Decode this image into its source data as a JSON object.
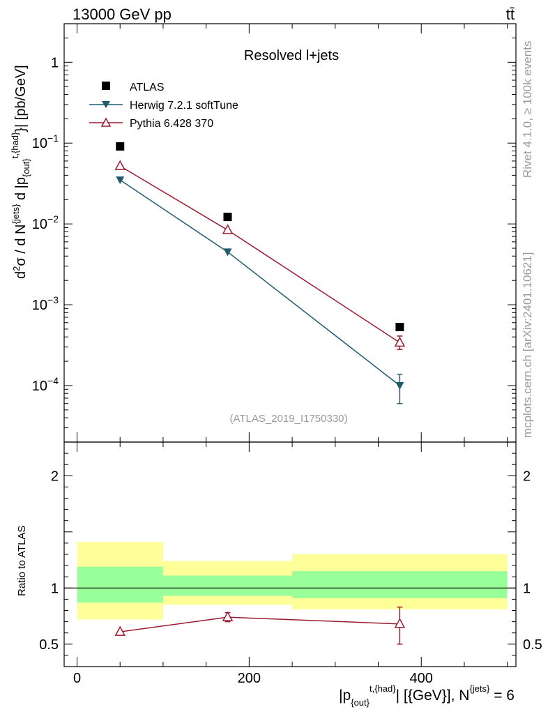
{
  "header": {
    "left_label": "13000 GeV pp",
    "right_label": "tt̄"
  },
  "side_labels": {
    "rivet": "Rivet 4.1.0, ≥ 100k events",
    "mcplots": "mcplots.cern.ch [arXiv:2401.10621]"
  },
  "chart_data": [
    {
      "type": "scatter",
      "panel": "main",
      "title": "Resolved l+jets",
      "analysis_id": "(ATLAS_2019_I1750330)",
      "ylabel": "d²σ / d N^{jets} d |p_{out}^{t,{had}}| [pb/GeV]",
      "yscale": "log",
      "ylim": [
        2e-05,
        3
      ],
      "xlim": [
        -15,
        510
      ],
      "y_ticks": [
        {
          "value": 1,
          "label": "1"
        },
        {
          "value": 0.1,
          "label": "10^-1",
          "base": "10",
          "exp": "−1"
        },
        {
          "value": 0.01,
          "label": "10^-2",
          "base": "10",
          "exp": "−2"
        },
        {
          "value": 0.001,
          "label": "10^-3",
          "base": "10",
          "exp": "−3"
        },
        {
          "value": 0.0001,
          "label": "10^-4",
          "base": "10",
          "exp": "−4"
        }
      ],
      "legend_position": "top-left",
      "series": [
        {
          "name": "ATLAS",
          "color": "#000000",
          "marker": "square",
          "points": [
            {
              "x": 50,
              "y": 0.091
            },
            {
              "x": 175,
              "y": 0.0122
            },
            {
              "x": 375,
              "y": 0.00053
            }
          ]
        },
        {
          "name": "Herwig 7.2.1 softTune",
          "color": "#1f5c6b",
          "marker": "triangle-down",
          "points": [
            {
              "x": 50,
              "y": 0.035
            },
            {
              "x": 175,
              "y": 0.0045
            },
            {
              "x": 375,
              "y": 0.0001,
              "ylo": 6e-05,
              "yhi": 0.000138
            }
          ]
        },
        {
          "name": "Pythia 6.428 370",
          "color": "#9b1b30",
          "marker": "triangle-up-open",
          "points": [
            {
              "x": 50,
              "y": 0.052
            },
            {
              "x": 175,
              "y": 0.0084
            },
            {
              "x": 375,
              "y": 0.00034,
              "ylo": 0.00028,
              "yhi": 0.00041
            }
          ]
        }
      ]
    },
    {
      "type": "scatter",
      "panel": "ratio",
      "ylabel": "Ratio to ATLAS",
      "xlabel": "|p_{out}^{t,{had}}| [{GeV}], N^{jets} = 6",
      "ylim": [
        0.3,
        2.3
      ],
      "xlim": [
        -15,
        510
      ],
      "x_ticks": [
        0,
        200,
        400
      ],
      "y_ticks": [
        0.5,
        1,
        2
      ],
      "bands": [
        {
          "xlo": 0,
          "xhi": 100,
          "stat_lo": 0.87,
          "stat_hi": 1.19,
          "tot_lo": 0.72,
          "tot_hi": 1.41
        },
        {
          "xlo": 100,
          "xhi": 250,
          "stat_lo": 0.93,
          "stat_hi": 1.11,
          "tot_lo": 0.85,
          "tot_hi": 1.24
        },
        {
          "xlo": 250,
          "xhi": 500,
          "stat_lo": 0.91,
          "stat_hi": 1.15,
          "tot_lo": 0.81,
          "tot_hi": 1.3
        }
      ],
      "band_colors": {
        "stat": "#99ff99",
        "total": "#ffff99"
      },
      "series": [
        {
          "name": "Pythia 6.428 370",
          "color": "#9b1b30",
          "marker": "triangle-up-open",
          "points": [
            {
              "x": 50,
              "y": 0.61
            },
            {
              "x": 175,
              "y": 0.74,
              "ylo": 0.7,
              "yhi": 0.78
            },
            {
              "x": 375,
              "y": 0.68,
              "ylo": 0.5,
              "yhi": 0.83
            }
          ]
        }
      ]
    }
  ]
}
